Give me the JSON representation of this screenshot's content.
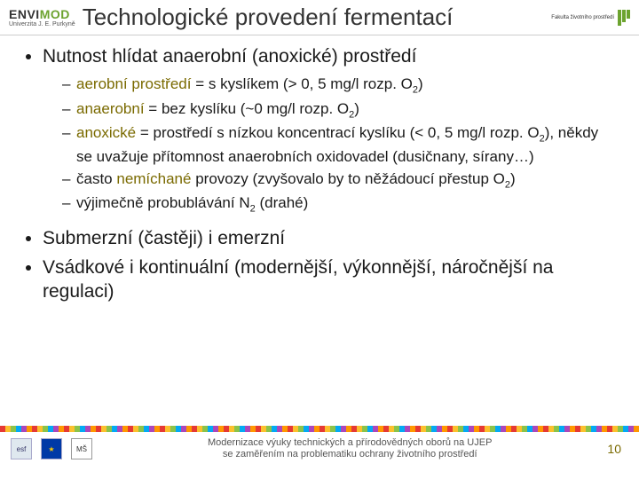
{
  "header": {
    "logo_left_main_a": "ENVI",
    "logo_left_main_b": "MOD",
    "logo_left_sub": "Univerzita J. E. Purkyně",
    "title": "Technologické provedení fermentací",
    "logo_right_label": "Fakulta životního prostředí"
  },
  "content": {
    "b1": "Nutnost hlídat anaerobní (anoxické) prostředí",
    "b1_1_a": "aerobní prostředí",
    "b1_1_b": " = s kyslíkem (> 0, 5 mg/l rozp. O",
    "b1_1_c": ")",
    "b1_2_a": "anaerobní",
    "b1_2_b": " = bez kyslíku (~0 mg/l rozp. O",
    "b1_2_c": ")",
    "b1_3_a": "anoxické",
    "b1_3_b": " = prostředí s nízkou koncentrací kyslíku (< 0, 5 mg/l rozp. O",
    "b1_3_c": "), někdy se uvažuje přítomnost anaerobních oxidovadel (dusičnany, sírany…)",
    "b1_4_a": "často ",
    "b1_4_b": "nemíchané",
    "b1_4_c": " provozy (zvyšovalo by to něžádoucí přestup O",
    "b1_4_d": ")",
    "b1_5_a": "výjimečně probublávání N",
    "b1_5_b": " (drahé)",
    "b2": "Submerzní (častěji) i emerzní",
    "b3": "Vsádkové i kontinuální (modernější, výkonnější, náročnější na regulaci)",
    "sub2": "2"
  },
  "footer": {
    "text_line1": "Modernizace výuky technických a přírodovědných oborů na UJEP",
    "text_line2": "se zaměřením na problematiku ochrany životního prostředí",
    "page": "10",
    "logo_esf": "esf",
    "logo_eu": "★",
    "logo_ms": "MŠ"
  }
}
